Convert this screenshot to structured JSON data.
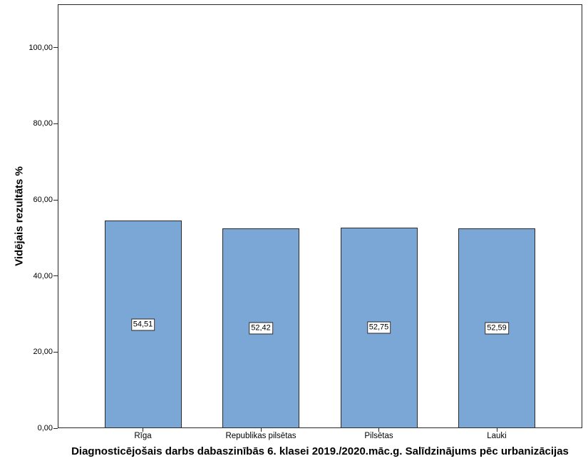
{
  "chart_data": {
    "type": "bar",
    "title": "Diagnosticējošais darbs dabaszinībās 6. klasei 2019./2020.māc.g. Salīdzinājums pēc urbanizācijas",
    "xlabel": "",
    "ylabel": "Vidējais rezultāts %",
    "categories": [
      "Rīga",
      "Republikas pilsētas",
      "Pilsētas",
      "Lauki"
    ],
    "values": [
      54.51,
      52.42,
      52.75,
      52.59
    ],
    "value_labels": [
      "54,51",
      "52,42",
      "52,75",
      "52,59"
    ],
    "yticks": [
      0,
      20,
      40,
      60,
      80,
      100
    ],
    "ytick_labels": [
      "0,00",
      "20,00",
      "40,00",
      "60,00",
      "80,00",
      "100,00"
    ],
    "ylim": [
      0,
      111.4
    ],
    "grid": false,
    "legend": "none",
    "colors": {
      "bar_fill": "#7BA7D7",
      "bar_border": "#2b2b2b",
      "axis": "#262626",
      "text": "#000000",
      "background": "#ffffff",
      "label_box_bg": "#ffffff",
      "label_box_border": "#262626"
    }
  }
}
